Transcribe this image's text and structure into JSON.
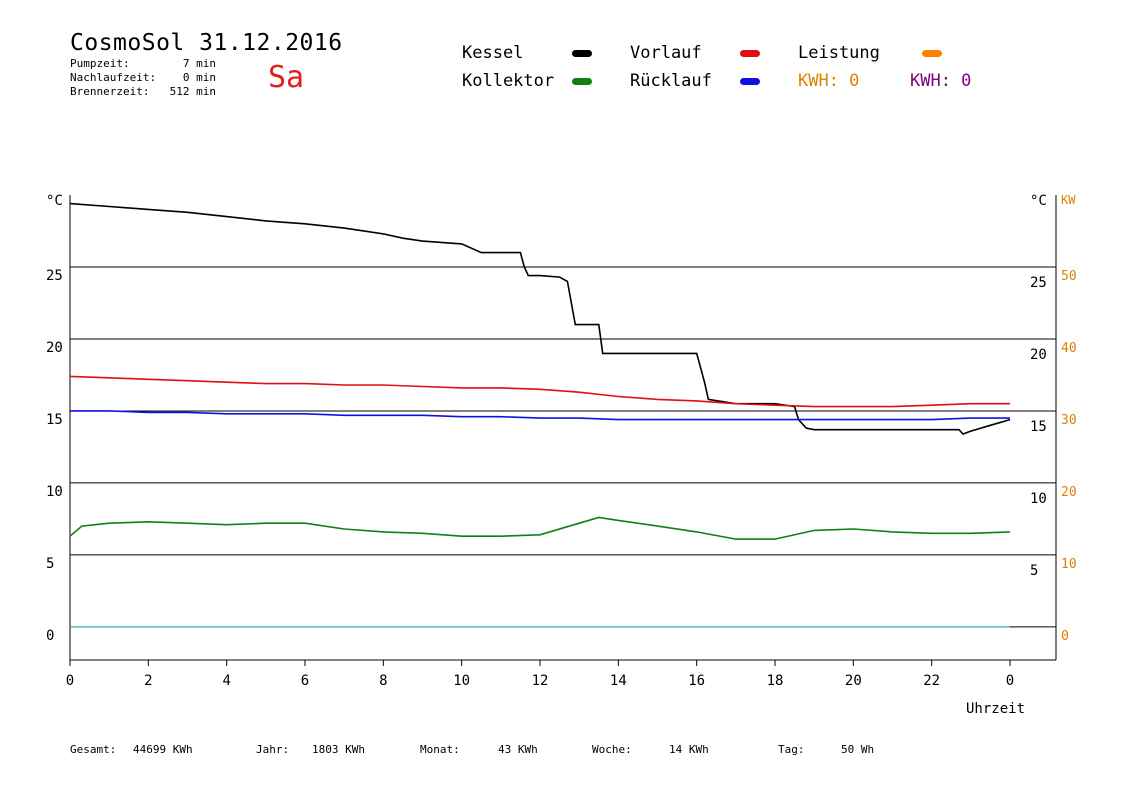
{
  "header": {
    "title": "CosmoSol 31.12.2016",
    "weekday": "Sa",
    "stats": [
      {
        "label": "Pumpzeit:",
        "value": "7 min"
      },
      {
        "label": "Nachlaufzeit:",
        "value": "0 min"
      },
      {
        "label": "Brennerzeit:",
        "value": "512 min"
      }
    ]
  },
  "legend": [
    {
      "name": "Kessel",
      "color": "#000000"
    },
    {
      "name": "Vorlauf",
      "color": "#e01010"
    },
    {
      "name": "Leistung",
      "color": "#ff8000"
    },
    {
      "name": "Kollektor",
      "color": "#108010"
    },
    {
      "name": "Rücklauf",
      "color": "#1010e0"
    }
  ],
  "kwh": [
    {
      "text": "KWH: 0",
      "color": "#e08000"
    },
    {
      "text": "KWH: 0",
      "color": "#800080"
    }
  ],
  "axis": {
    "left_unit": "°C",
    "right_unit": "°C",
    "kw_unit": "KW",
    "x_label": "Uhrzeit"
  },
  "footer": [
    {
      "label": "Gesamt:",
      "value": "44699 KWh"
    },
    {
      "label": "Jahr:",
      "value": "1803 KWh"
    },
    {
      "label": "Monat:",
      "value": "43 KWh"
    },
    {
      "label": "Woche:",
      "value": "14 KWh"
    },
    {
      "label": "Tag:",
      "value": "50 Wh"
    }
  ],
  "chart_data": {
    "type": "line",
    "x_range": [
      0,
      24
    ],
    "x_ticks": [
      "0",
      "2",
      "4",
      "6",
      "8",
      "10",
      "12",
      "14",
      "16",
      "18",
      "20",
      "22",
      "0"
    ],
    "y_left_range": [
      -2.3,
      30
    ],
    "y_left_ticks": [
      "0",
      "5",
      "10",
      "15",
      "20",
      "25"
    ],
    "y_right_ticks": [
      "5",
      "10",
      "15",
      "20",
      "25"
    ],
    "y_kw_ticks": [
      "0",
      "10",
      "20",
      "30",
      "40",
      "50"
    ],
    "grid": true,
    "series": [
      {
        "name": "Kessel",
        "color": "#000000",
        "x": [
          0,
          1,
          2,
          3,
          4,
          5,
          6,
          7,
          8,
          8.5,
          9,
          10,
          10.5,
          11,
          11.5,
          11.6,
          11.7,
          12,
          12.5,
          12.7,
          12.9,
          13.5,
          13.6,
          14,
          15,
          16,
          16.2,
          16.3,
          17,
          18,
          18.5,
          18.6,
          18.8,
          19,
          20,
          21,
          22,
          22.7,
          22.8,
          23,
          23.5,
          24
        ],
        "y": [
          29.4,
          29.2,
          29.0,
          28.8,
          28.5,
          28.2,
          28.0,
          27.7,
          27.3,
          27.0,
          26.8,
          26.6,
          26.0,
          26.0,
          26.0,
          25.0,
          24.4,
          24.4,
          24.3,
          24.0,
          21.0,
          21.0,
          19.0,
          19.0,
          19.0,
          19.0,
          17.0,
          15.8,
          15.5,
          15.5,
          15.3,
          14.4,
          13.8,
          13.7,
          13.7,
          13.7,
          13.7,
          13.7,
          13.4,
          13.6,
          14.0,
          14.4
        ]
      },
      {
        "name": "Vorlauf",
        "color": "#e01010",
        "x": [
          0,
          1,
          2,
          3,
          4,
          5,
          6,
          7,
          8,
          9,
          10,
          11,
          12,
          13,
          14,
          15,
          16,
          17,
          18,
          19,
          20,
          21,
          22,
          23,
          24
        ],
        "y": [
          17.4,
          17.3,
          17.2,
          17.1,
          17.0,
          16.9,
          16.9,
          16.8,
          16.8,
          16.7,
          16.6,
          16.6,
          16.5,
          16.3,
          16.0,
          15.8,
          15.7,
          15.5,
          15.4,
          15.3,
          15.3,
          15.3,
          15.4,
          15.5,
          15.5
        ]
      },
      {
        "name": "Rücklauf",
        "color": "#1010e0",
        "x": [
          0,
          1,
          2,
          3,
          4,
          5,
          6,
          7,
          8,
          9,
          10,
          11,
          12,
          13,
          14,
          15,
          16,
          17,
          18,
          19,
          20,
          21,
          22,
          23,
          24
        ],
        "y": [
          15.0,
          15.0,
          14.9,
          14.9,
          14.8,
          14.8,
          14.8,
          14.7,
          14.7,
          14.7,
          14.6,
          14.6,
          14.5,
          14.5,
          14.4,
          14.4,
          14.4,
          14.4,
          14.4,
          14.4,
          14.4,
          14.4,
          14.4,
          14.5,
          14.5
        ]
      },
      {
        "name": "Kollektor",
        "color": "#108010",
        "x": [
          0,
          0.3,
          1,
          2,
          3,
          4,
          5,
          6,
          7,
          8,
          9,
          10,
          11,
          12,
          13,
          13.5,
          14,
          15,
          16,
          17,
          18,
          19,
          20,
          21,
          22,
          23,
          24
        ],
        "y": [
          6.3,
          7.0,
          7.2,
          7.3,
          7.2,
          7.1,
          7.2,
          7.2,
          6.8,
          6.6,
          6.5,
          6.3,
          6.3,
          6.4,
          7.2,
          7.6,
          7.4,
          7.0,
          6.6,
          6.1,
          6.1,
          6.7,
          6.8,
          6.6,
          6.5,
          6.5,
          6.6
        ]
      },
      {
        "name": "Leistung",
        "color": "#ff8000",
        "x": [],
        "y": []
      }
    ],
    "pump_pulses": {
      "color": "#20d0d0",
      "baseline": 0,
      "x_start": [
        5.7,
        6.8,
        7.5,
        8.0,
        8.4,
        8.9,
        9.3,
        9.8,
        10.2,
        10.7,
        11.1,
        11.6,
        12.0,
        12.5,
        12.9,
        13.4,
        13.8,
        14.3,
        14.7,
        15.2,
        15.6,
        16.1,
        16.5,
        17.0,
        17.4,
        17.9,
        18.3,
        18.8,
        19.2,
        19.7,
        20.1,
        20.6,
        21.0,
        21.5,
        21.9,
        22.4,
        22.8,
        23.3
      ],
      "x_end": [
        6.5,
        6.95,
        7.7,
        8.2,
        8.6,
        9.1,
        9.5,
        10.0,
        10.4,
        10.9,
        11.3,
        11.8,
        12.2,
        12.7,
        13.1,
        13.6,
        14.0,
        14.5,
        14.9,
        15.4,
        15.8,
        16.3,
        16.7,
        17.2,
        17.6,
        18.1,
        18.5,
        19.0,
        19.4,
        19.9,
        20.3,
        20.8,
        21.2,
        21.7,
        22.1,
        22.6,
        23.0,
        23.5
      ],
      "height": 1.0
    }
  }
}
